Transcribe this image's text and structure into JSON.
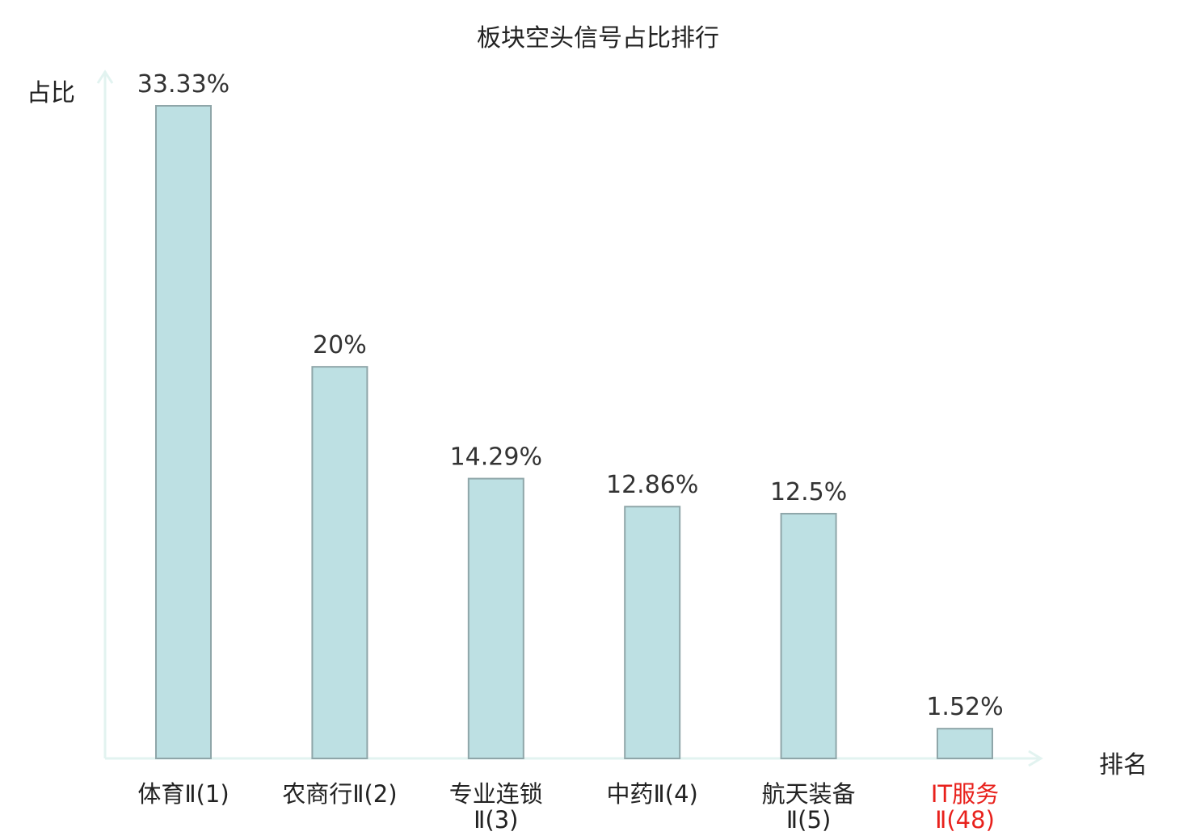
{
  "chart_data": {
    "type": "bar",
    "title": "板块空头信号占比排行",
    "ylabel": "占比",
    "xlabel": "排名",
    "categories": [
      [
        "体育Ⅱ(1)"
      ],
      [
        "农商行Ⅱ(2)"
      ],
      [
        "专业连锁",
        "Ⅱ(3)"
      ],
      [
        "中药Ⅱ(4)"
      ],
      [
        "航天装备",
        "Ⅱ(5)"
      ],
      [
        "IT服务",
        "Ⅱ(48)"
      ]
    ],
    "values": [
      33.33,
      20,
      14.29,
      12.86,
      12.5,
      1.52
    ],
    "value_labels": [
      "33.33%",
      "20%",
      "14.29%",
      "12.86%",
      "12.5%",
      "1.52%"
    ],
    "highlight_index": 5,
    "ylim": [
      0,
      33.33
    ],
    "grid": false,
    "legend": "none"
  },
  "colors": {
    "bar_fill": "#bde0e3",
    "bar_stroke": "#8fa6a9",
    "axis": "#e2f3f0",
    "text": "#222222",
    "value_text": "#333333",
    "highlight": "#e8211c"
  }
}
